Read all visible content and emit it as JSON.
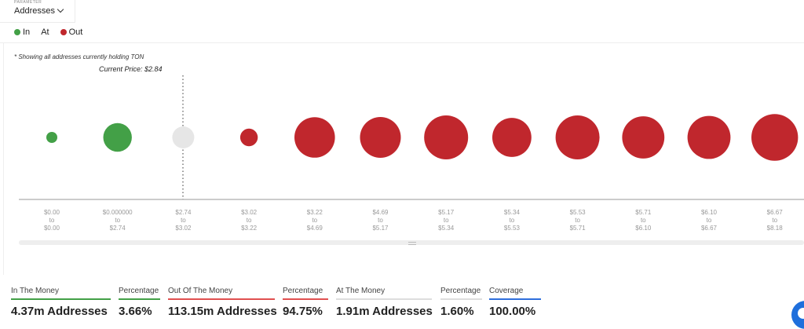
{
  "parameter": {
    "label": "PARAMETER",
    "selected": "Addresses"
  },
  "legend": [
    {
      "label": "In",
      "color": "#43a047"
    },
    {
      "label": "At",
      "color": ""
    },
    {
      "label": "Out",
      "color": "#c0272d"
    }
  ],
  "note": "* Showing all addresses currently holding TON",
  "current_price_label": "Current Price: $2.84",
  "chart_data": {
    "type": "bubble",
    "current_price": 2.84,
    "bins": [
      {
        "from": "$0.00",
        "to": "$0.00",
        "status": "in",
        "relative_size": 0.25
      },
      {
        "from": "$0.000000",
        "to": "$2.74",
        "status": "in",
        "relative_size": 0.65
      },
      {
        "from": "$2.74",
        "to": "$3.02",
        "status": "at",
        "relative_size": 0.5
      },
      {
        "from": "$3.02",
        "to": "$3.22",
        "status": "out",
        "relative_size": 0.4
      },
      {
        "from": "$3.22",
        "to": "$4.69",
        "status": "out",
        "relative_size": 0.92
      },
      {
        "from": "$4.69",
        "to": "$5.17",
        "status": "out",
        "relative_size": 0.93
      },
      {
        "from": "$5.17",
        "to": "$5.34",
        "status": "out",
        "relative_size": 1.0
      },
      {
        "from": "$5.34",
        "to": "$5.53",
        "status": "out",
        "relative_size": 0.89
      },
      {
        "from": "$5.53",
        "to": "$5.71",
        "status": "out",
        "relative_size": 1.0
      },
      {
        "from": "$5.71",
        "to": "$6.10",
        "status": "out",
        "relative_size": 0.96
      },
      {
        "from": "$6.10",
        "to": "$6.67",
        "status": "out",
        "relative_size": 0.98
      },
      {
        "from": "$6.67",
        "to": "$8.18",
        "status": "out",
        "relative_size": 1.06
      }
    ],
    "tick_connector": "to",
    "colors": {
      "in": "#43a047",
      "at": "#e6e6e6",
      "out": "#c0272d"
    }
  },
  "stats": [
    {
      "label": "In The Money",
      "value": "4.37m Addresses",
      "color": "#43a047"
    },
    {
      "label": "Percentage",
      "value": "3.66%",
      "color": "#43a047"
    },
    {
      "label": "Out Of The Money",
      "value": "113.15m Addresses",
      "color": "#e05050"
    },
    {
      "label": "Percentage",
      "value": "94.75%",
      "color": "#e05050"
    },
    {
      "label": "At The Money",
      "value": "1.91m Addresses",
      "color": "#dddddd"
    },
    {
      "label": "Percentage",
      "value": "1.60%",
      "color": "#dddddd"
    },
    {
      "label": "Coverage",
      "value": "100.00%",
      "color": "#2f6fdc"
    }
  ]
}
